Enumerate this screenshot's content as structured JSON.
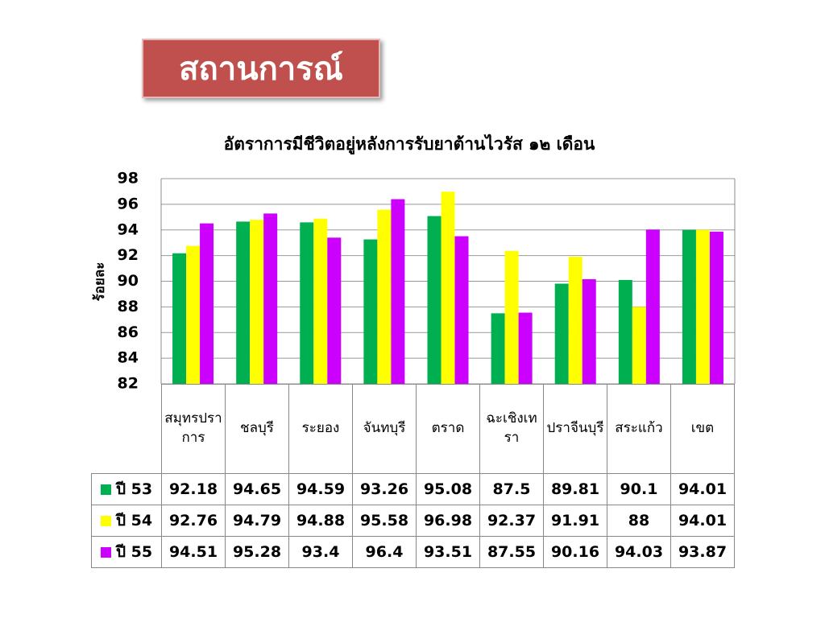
{
  "header": {
    "title": "สถานการณ์"
  },
  "chart_data": {
    "type": "bar",
    "title": "อัตราการมีชีวิตอยู่หลังการรับยาต้านไวรัส ๑๒ เดือน",
    "y_label": "ร้อยละ",
    "categories": [
      "สมุทรปราการ",
      "ชลบุรี",
      "ระยอง",
      "จันทบุรี",
      "ตราด",
      "ฉะเชิงเทรา",
      "ปราจีนบุรี",
      "สระแก้ว",
      "เขต"
    ],
    "series": [
      {
        "name": "ปี 53",
        "color": "#00b050",
        "values": [
          92.18,
          94.65,
          94.59,
          93.26,
          95.08,
          87.5,
          89.81,
          90.1,
          94.01
        ]
      },
      {
        "name": "ปี 54",
        "color": "#ffff00",
        "values": [
          92.76,
          94.79,
          94.88,
          95.58,
          96.98,
          92.37,
          91.91,
          88,
          94.01
        ]
      },
      {
        "name": "ปี 55",
        "color": "#cc00ff",
        "values": [
          94.51,
          95.28,
          93.4,
          96.4,
          93.51,
          87.55,
          90.16,
          94.03,
          93.87
        ]
      }
    ],
    "ylim": [
      82,
      98
    ],
    "yticks": [
      82,
      84,
      86,
      88,
      90,
      92,
      94,
      96,
      98
    ],
    "grid": true
  }
}
